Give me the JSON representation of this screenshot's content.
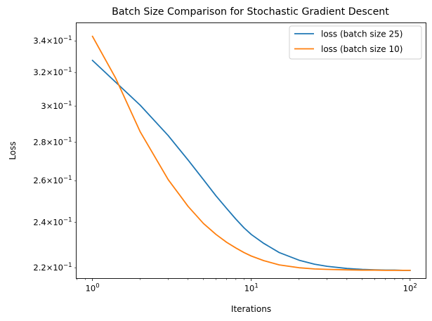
{
  "chart_data": {
    "type": "line",
    "title": "Batch Size Comparison for Stochastic Gradient Descent",
    "xlabel": "Iterations",
    "ylabel": "Loss",
    "xscale": "log",
    "yscale": "log",
    "xlim": [
      0.79,
      126
    ],
    "ylim": [
      0.2155,
      0.352
    ],
    "grid": false,
    "legend": "top-right",
    "x_ticks": [
      {
        "value": 1,
        "base": "10",
        "exp": "0"
      },
      {
        "value": 10,
        "base": "10",
        "exp": "1"
      },
      {
        "value": 100,
        "base": "10",
        "exp": "2"
      }
    ],
    "y_ticks": [
      {
        "value": 0.22,
        "mant": "2.2",
        "base": "10",
        "exp": "−1"
      },
      {
        "value": 0.24,
        "mant": "2.4",
        "base": "10",
        "exp": "−1"
      },
      {
        "value": 0.26,
        "mant": "2.6",
        "base": "10",
        "exp": "−1"
      },
      {
        "value": 0.28,
        "mant": "2.8",
        "base": "10",
        "exp": "−1"
      },
      {
        "value": 0.3,
        "mant": "3",
        "base": "10",
        "exp": "−1"
      },
      {
        "value": 0.32,
        "mant": "3.2",
        "base": "10",
        "exp": "−1"
      },
      {
        "value": 0.34,
        "mant": "3.4",
        "base": "10",
        "exp": "−1"
      }
    ],
    "series": [
      {
        "name": "loss (batch size 25)",
        "color": "#1f77b4",
        "x": [
          1,
          2,
          3,
          4,
          5,
          6,
          7,
          8,
          9,
          10,
          12,
          15,
          20,
          25,
          30,
          40,
          50,
          60,
          70,
          80,
          90,
          100
        ],
        "y": [
          0.3275,
          0.3005,
          0.2835,
          0.2705,
          0.2605,
          0.2525,
          0.2465,
          0.2415,
          0.2375,
          0.2345,
          0.2305,
          0.2265,
          0.2232,
          0.2215,
          0.2206,
          0.2197,
          0.2193,
          0.2191,
          0.219,
          0.219,
          0.2189,
          0.2189
        ]
      },
      {
        "name": "loss (batch size 10)",
        "color": "#ff7f0e",
        "x": [
          1,
          1.4,
          2,
          3,
          4,
          5,
          6,
          7,
          8,
          9,
          10,
          12,
          15,
          20,
          25,
          30,
          40,
          50,
          60,
          70,
          80,
          90,
          100
        ],
        "y": [
          0.343,
          0.3165,
          0.2855,
          0.2605,
          0.2475,
          0.2395,
          0.2345,
          0.231,
          0.2285,
          0.2265,
          0.225,
          0.223,
          0.2212,
          0.22,
          0.2195,
          0.2193,
          0.2191,
          0.219,
          0.219,
          0.2189,
          0.2189,
          0.2189,
          0.2189
        ]
      }
    ]
  }
}
